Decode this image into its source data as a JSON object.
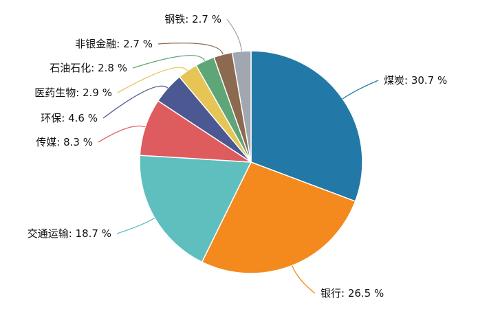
{
  "chart_data": {
    "type": "pie",
    "slices": [
      {
        "label": "煤炭",
        "value": 30.7,
        "display": "煤炭: 30.7 %",
        "color": "#2278a6"
      },
      {
        "label": "银行",
        "value": 26.5,
        "display": "银行: 26.5 %",
        "color": "#f4891d"
      },
      {
        "label": "交通运输",
        "value": 18.7,
        "display": "交通运输: 18.7 %",
        "color": "#5fbfbf"
      },
      {
        "label": "传媒",
        "value": 8.3,
        "display": "传媒: 8.3 %",
        "color": "#df5c5e"
      },
      {
        "label": "环保",
        "value": 4.6,
        "display": "环保: 4.6 %",
        "color": "#4c5891"
      },
      {
        "label": "医药生物",
        "value": 2.9,
        "display": "医药生物: 2.9 %",
        "color": "#e6c556"
      },
      {
        "label": "石油石化",
        "value": 2.8,
        "display": "石油石化: 2.8 %",
        "color": "#5ea677"
      },
      {
        "label": "非银金融",
        "value": 2.7,
        "display": "非银金融: 2.7 %",
        "color": "#8c6a4f"
      },
      {
        "label": "钢铁",
        "value": 2.7,
        "display": "钢铁: 2.7 %",
        "color": "#a0a7b0"
      }
    ],
    "start_angle": "12 o'clock",
    "direction": "clockwise",
    "legend": "none"
  }
}
